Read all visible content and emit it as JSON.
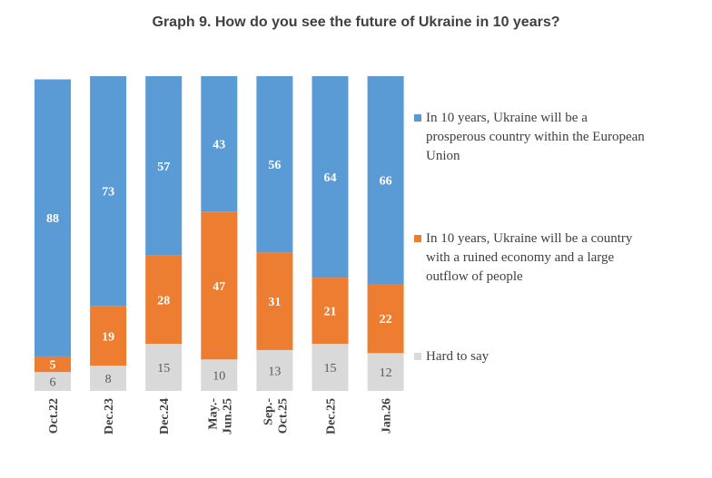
{
  "chart_data": {
    "type": "bar",
    "stacked": true,
    "title": "Graph 9. How do you see the future of Ukraine in 10 years?",
    "categories": [
      "Oct.22",
      "Dec.23",
      "Dec.24",
      "May.-\nJun.25",
      "Sep.-\nOct.25",
      "Dec.25",
      "Jan.26"
    ],
    "series": [
      {
        "name": "Hard to say",
        "color": "#d9d9d9",
        "label_color": "#595959",
        "values": [
          6,
          8,
          15,
          10,
          13,
          15,
          12
        ]
      },
      {
        "name": "In 10 years, Ukraine will be a country with a ruined economy and a large outflow of people",
        "color": "#ed7d31",
        "label_color": "#ffffff",
        "values": [
          5,
          19,
          28,
          47,
          31,
          21,
          22
        ]
      },
      {
        "name": "In 10 years, Ukraine will be a prosperous country within the European Union",
        "color": "#5b9bd5",
        "label_color": "#ffffff",
        "values": [
          88,
          73,
          57,
          43,
          56,
          64,
          66
        ]
      }
    ],
    "legend_position": "right",
    "legend_order": [
      2,
      1,
      0
    ],
    "legend_lines": [
      [
        "In 10 years, Ukraine will be a",
        "prosperous country within the European",
        "Union"
      ],
      [
        "In 10 years, Ukraine will be a country",
        "with a ruined economy and a large",
        "outflow of people"
      ],
      [
        "Hard to say"
      ]
    ],
    "ylim": [
      0,
      100
    ],
    "grid": false,
    "xlabel": "",
    "ylabel": ""
  }
}
